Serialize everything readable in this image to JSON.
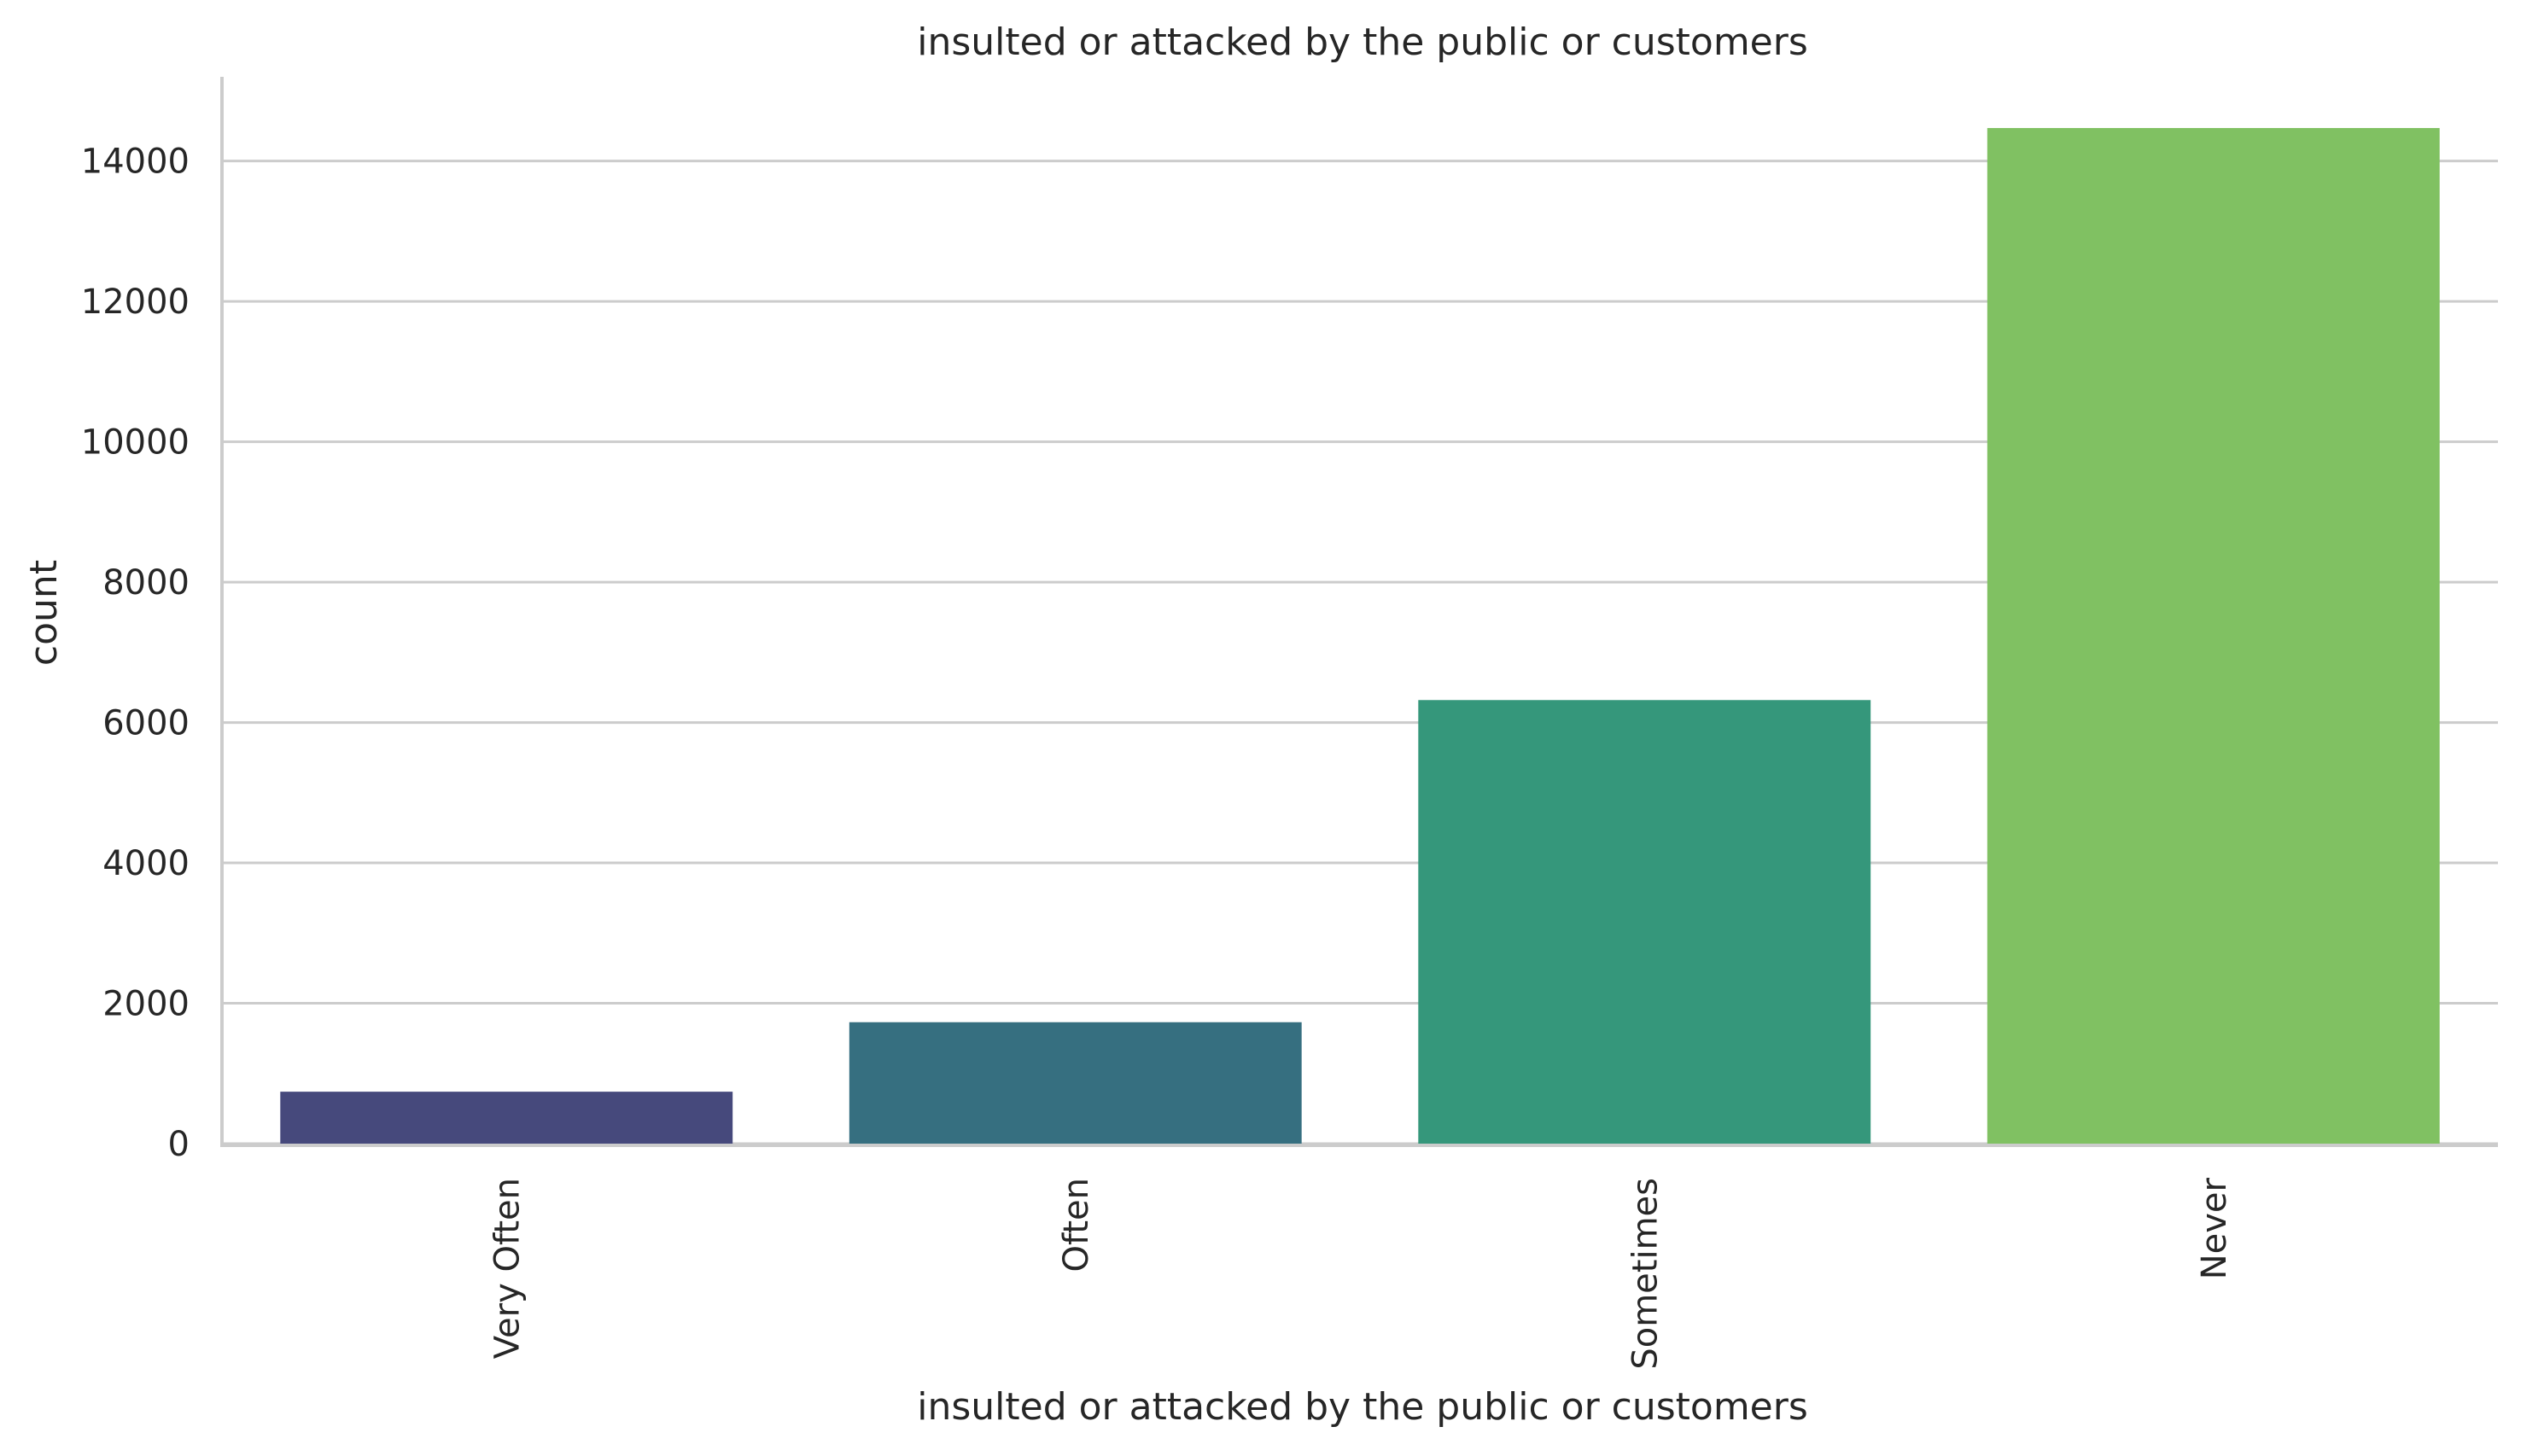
{
  "chart_data": {
    "type": "bar",
    "title": "insulted or attacked by the public or customers",
    "xlabel": "insulted or attacked by the public or customers",
    "ylabel": "count",
    "categories": [
      "Very Often",
      "Often",
      "Sometimes",
      "Never"
    ],
    "values": [
      740,
      1730,
      6320,
      14470
    ],
    "colors": [
      "#46497c",
      "#366f80",
      "#35977b",
      "#80c162"
    ],
    "ylim": [
      0,
      15200
    ],
    "yticks": [
      0,
      2000,
      4000,
      6000,
      8000,
      10000,
      12000,
      14000
    ],
    "ytick_labels": [
      "0",
      "2000",
      "4000",
      "6000",
      "8000",
      "10000",
      "12000",
      "14000"
    ],
    "grid": "horizontal",
    "grid_color": "#cccccc",
    "spine_color": "#cccccc",
    "x_tick_rotation": "vertical"
  }
}
